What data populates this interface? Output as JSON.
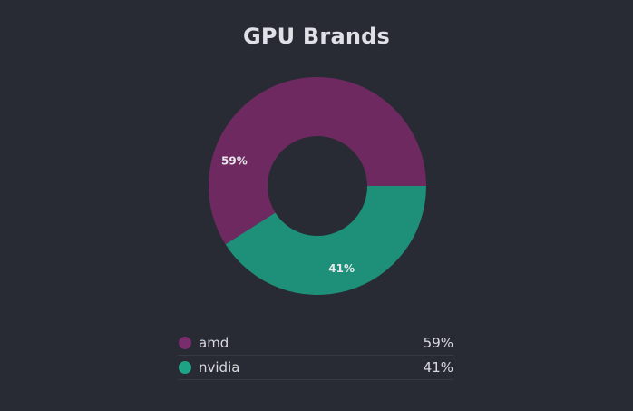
{
  "chart_data": {
    "type": "pie",
    "title": "GPU Brands",
    "categories": [
      "amd",
      "nvidia"
    ],
    "values": [
      59,
      41
    ],
    "labels": [
      "59%",
      "41%"
    ],
    "colors": [
      "#6e2a60",
      "#1e8f78"
    ],
    "legend": {
      "placement": "bottom",
      "items": [
        {
          "name": "amd",
          "value": "59%",
          "color": "#7a2d6c"
        },
        {
          "name": "nvidia",
          "value": "41%",
          "color": "#1fa386"
        }
      ]
    }
  }
}
